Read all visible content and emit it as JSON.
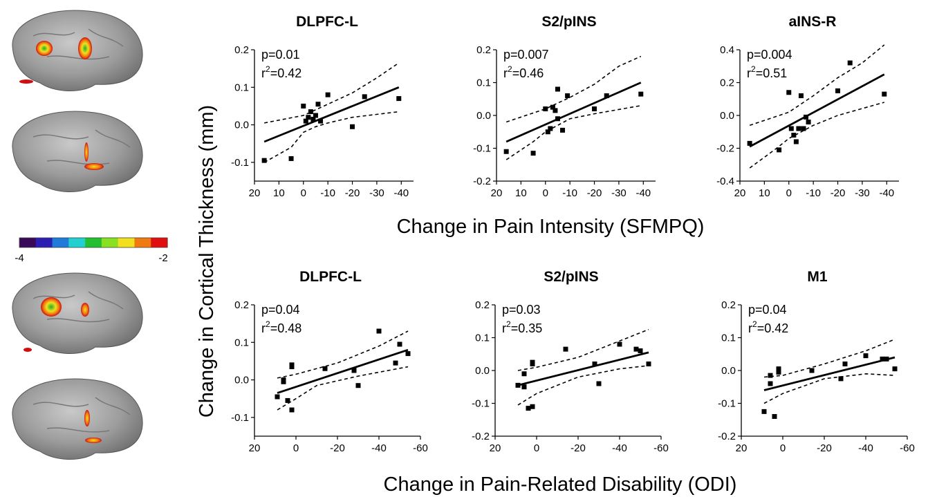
{
  "figure": {
    "ylabel": "Change in Cortical Thickness (mm)",
    "row_labels": [
      "Change in Pain Intensity (SFMPQ)",
      "Change in Pain-Related Disability (ODI)"
    ]
  },
  "colorbar": {
    "min_label": "-4",
    "max_label": "-2",
    "colors": [
      "#3a0a5a",
      "#2a1fb0",
      "#1f7ad8",
      "#22d0d0",
      "#22c030",
      "#88e020",
      "#f0e020",
      "#f07a10",
      "#e01010"
    ]
  },
  "brain_images": [
    {
      "label": "left-hemisphere-pain-intensity"
    },
    {
      "label": "right-hemisphere-pain-intensity"
    },
    {
      "label": "left-hemisphere-disability"
    },
    {
      "label": "right-hemisphere-disability"
    }
  ],
  "chart_data": [
    {
      "type": "scatter",
      "title": "DLPFC-L",
      "p_label": "p=0.01",
      "r2_prefix": "r",
      "r2_sup": "2",
      "r2_value": "=0.42",
      "xlim": [
        20,
        -45
      ],
      "ylim": [
        -0.15,
        0.2
      ],
      "xticks": [
        20,
        10,
        0,
        -10,
        -20,
        -30,
        -40
      ],
      "xticklabels": [
        "20",
        "10",
        "0",
        "-10",
        "-20",
        "-30",
        "-40"
      ],
      "yticks": [
        -0.1,
        0.0,
        0.1,
        0.2
      ],
      "yticklabels": [
        "-0.1",
        "0.0",
        "0.1",
        "0.2"
      ],
      "points": [
        [
          16,
          -0.095
        ],
        [
          5,
          -0.09
        ],
        [
          0,
          0.05
        ],
        [
          -1,
          0.01
        ],
        [
          -2,
          0.02
        ],
        [
          -3,
          0.035
        ],
        [
          -4,
          0.015
        ],
        [
          -5,
          0.025
        ],
        [
          -6,
          0.055
        ],
        [
          -7,
          0.01
        ],
        [
          -10,
          0.08
        ],
        [
          -20,
          -0.005
        ],
        [
          -25,
          0.075
        ],
        [
          -39,
          0.07
        ]
      ],
      "fit": [
        [
          16,
          -0.045
        ],
        [
          -39,
          0.1
        ]
      ],
      "ci_upper": [
        [
          16,
          0.005
        ],
        [
          0,
          0.025
        ],
        [
          -10,
          0.055
        ],
        [
          -20,
          0.085
        ],
        [
          -30,
          0.125
        ],
        [
          -39,
          0.165
        ]
      ],
      "ci_lower": [
        [
          16,
          -0.1
        ],
        [
          5,
          -0.06
        ],
        [
          0,
          -0.02
        ],
        [
          -5,
          -0.005
        ],
        [
          -10,
          0.005
        ],
        [
          -20,
          0.02
        ],
        [
          -39,
          0.035
        ]
      ]
    },
    {
      "type": "scatter",
      "title": "S2/pINS",
      "p_label": "p=0.007",
      "r2_prefix": "r",
      "r2_sup": "2",
      "r2_value": "=0.46",
      "xlim": [
        20,
        -45
      ],
      "ylim": [
        -0.2,
        0.2
      ],
      "xticks": [
        20,
        10,
        0,
        -10,
        -20,
        -30,
        -40
      ],
      "xticklabels": [
        "20",
        "10",
        "0",
        "-10",
        "-20",
        "-30",
        "-40"
      ],
      "yticks": [
        -0.2,
        -0.1,
        0.0,
        0.1,
        0.2
      ],
      "yticklabels": [
        "-0.2",
        "-0.1",
        "0.0",
        "0.1",
        "0.2"
      ],
      "points": [
        [
          16,
          -0.11
        ],
        [
          5,
          -0.115
        ],
        [
          0,
          0.02
        ],
        [
          -1,
          -0.05
        ],
        [
          -2,
          -0.04
        ],
        [
          -3,
          0.025
        ],
        [
          -4,
          0.015
        ],
        [
          -5,
          0.08
        ],
        [
          -5,
          -0.01
        ],
        [
          -7,
          -0.045
        ],
        [
          -9,
          0.06
        ],
        [
          -20,
          0.02
        ],
        [
          -25,
          0.06
        ],
        [
          -39,
          0.065
        ]
      ],
      "fit": [
        [
          16,
          -0.08
        ],
        [
          -39,
          0.1
        ]
      ],
      "ci_upper": [
        [
          16,
          -0.02
        ],
        [
          0,
          0.02
        ],
        [
          -10,
          0.055
        ],
        [
          -20,
          0.095
        ],
        [
          -30,
          0.15
        ],
        [
          -39,
          0.18
        ]
      ],
      "ci_lower": [
        [
          16,
          -0.135
        ],
        [
          5,
          -0.08
        ],
        [
          0,
          -0.05
        ],
        [
          -10,
          -0.01
        ],
        [
          -20,
          0.005
        ],
        [
          -39,
          0.03
        ]
      ]
    },
    {
      "type": "scatter",
      "title": "aINS-R",
      "p_label": "p=0.004",
      "r2_prefix": "r",
      "r2_sup": "2",
      "r2_value": "=0.51",
      "xlim": [
        20,
        -45
      ],
      "ylim": [
        -0.4,
        0.4
      ],
      "xticks": [
        20,
        10,
        0,
        -10,
        -20,
        -30,
        -40
      ],
      "xticklabels": [
        "20",
        "10",
        "0",
        "-10",
        "-20",
        "-30",
        "-40"
      ],
      "yticks": [
        -0.4,
        -0.2,
        0.0,
        0.2,
        0.4
      ],
      "yticklabels": [
        "-0.4",
        "-0.2",
        "0.0",
        "0.2",
        "0.4"
      ],
      "points": [
        [
          16,
          -0.17
        ],
        [
          4,
          -0.21
        ],
        [
          0,
          0.14
        ],
        [
          -1,
          -0.08
        ],
        [
          -2,
          -0.12
        ],
        [
          -3,
          -0.16
        ],
        [
          -4,
          -0.08
        ],
        [
          -5,
          0.12
        ],
        [
          -6,
          -0.08
        ],
        [
          -7,
          -0.01
        ],
        [
          -8,
          -0.04
        ],
        [
          -20,
          0.15
        ],
        [
          -25,
          0.32
        ],
        [
          -39,
          0.13
        ]
      ],
      "fit": [
        [
          16,
          -0.19
        ],
        [
          -39,
          0.25
        ]
      ],
      "ci_upper": [
        [
          16,
          -0.06
        ],
        [
          0,
          0.02
        ],
        [
          -10,
          0.12
        ],
        [
          -20,
          0.23
        ],
        [
          -30,
          0.32
        ],
        [
          -39,
          0.43
        ]
      ],
      "ci_lower": [
        [
          16,
          -0.32
        ],
        [
          5,
          -0.2
        ],
        [
          0,
          -0.14
        ],
        [
          -10,
          -0.06
        ],
        [
          -20,
          0.0
        ],
        [
          -39,
          0.08
        ]
      ]
    },
    {
      "type": "scatter",
      "title": "DLPFC-L",
      "p_label": "p=0.04",
      "r2_prefix": "r",
      "r2_sup": "2",
      "r2_value": "=0.48",
      "xlim": [
        20,
        -60
      ],
      "ylim": [
        -0.15,
        0.2
      ],
      "xticks": [
        20,
        0,
        -20,
        -40,
        -60
      ],
      "xticklabels": [
        "20",
        "0",
        "-20",
        "-40",
        "-60"
      ],
      "yticks": [
        -0.1,
        0.0,
        0.1,
        0.2
      ],
      "yticklabels": [
        "-0.1",
        "0.0",
        "0.1",
        "0.2"
      ],
      "points": [
        [
          9,
          -0.045
        ],
        [
          2,
          0.04
        ],
        [
          2,
          0.035
        ],
        [
          2,
          -0.08
        ],
        [
          4,
          -0.055
        ],
        [
          6,
          0.0
        ],
        [
          6,
          -0.005
        ],
        [
          -14,
          0.03
        ],
        [
          -28,
          0.025
        ],
        [
          -30,
          -0.015
        ],
        [
          -40,
          0.13
        ],
        [
          -48,
          0.045
        ],
        [
          -50,
          0.095
        ],
        [
          -54,
          0.07
        ]
      ],
      "fit": [
        [
          9,
          -0.035
        ],
        [
          -54,
          0.08
        ]
      ],
      "ci_upper": [
        [
          9,
          0.005
        ],
        [
          0,
          0.015
        ],
        [
          -20,
          0.045
        ],
        [
          -40,
          0.09
        ],
        [
          -54,
          0.13
        ]
      ],
      "ci_lower": [
        [
          9,
          -0.08
        ],
        [
          0,
          -0.05
        ],
        [
          -10,
          -0.015
        ],
        [
          -30,
          0.01
        ],
        [
          -54,
          0.035
        ]
      ]
    },
    {
      "type": "scatter",
      "title": "S2/pINS",
      "p_label": "p=0.03",
      "r2_prefix": "r",
      "r2_sup": "2",
      "r2_value": "=0.35",
      "xlim": [
        20,
        -60
      ],
      "ylim": [
        -0.2,
        0.2
      ],
      "xticks": [
        20,
        0,
        -20,
        -40,
        -60
      ],
      "xticklabels": [
        "20",
        "0",
        "-20",
        "-40",
        "-60"
      ],
      "yticks": [
        -0.2,
        -0.1,
        0.0,
        0.1,
        0.2
      ],
      "yticklabels": [
        "-0.2",
        "-0.1",
        "0.0",
        "0.1",
        "0.2"
      ],
      "points": [
        [
          9,
          -0.045
        ],
        [
          2,
          0.025
        ],
        [
          2,
          0.02
        ],
        [
          2,
          -0.11
        ],
        [
          4,
          -0.115
        ],
        [
          6,
          -0.01
        ],
        [
          6,
          -0.05
        ],
        [
          -14,
          0.065
        ],
        [
          -28,
          0.02
        ],
        [
          -30,
          -0.04
        ],
        [
          -40,
          0.08
        ],
        [
          -48,
          0.065
        ],
        [
          -50,
          0.06
        ],
        [
          -54,
          0.02
        ]
      ],
      "fit": [
        [
          9,
          -0.045
        ],
        [
          -54,
          0.055
        ]
      ],
      "ci_upper": [
        [
          9,
          0.0
        ],
        [
          0,
          0.01
        ],
        [
          -20,
          0.04
        ],
        [
          -40,
          0.09
        ],
        [
          -54,
          0.125
        ]
      ],
      "ci_lower": [
        [
          9,
          -0.105
        ],
        [
          0,
          -0.07
        ],
        [
          -20,
          -0.02
        ],
        [
          -40,
          0.005
        ],
        [
          -54,
          0.015
        ]
      ]
    },
    {
      "type": "scatter",
      "title": "M1",
      "p_label": "p=0.04",
      "r2_prefix": "r",
      "r2_sup": "2",
      "r2_value": "=0.42",
      "xlim": [
        20,
        -60
      ],
      "ylim": [
        -0.2,
        0.2
      ],
      "xticks": [
        20,
        0,
        -20,
        -40,
        -60
      ],
      "xticklabels": [
        "20",
        "0",
        "-20",
        "-40",
        "-60"
      ],
      "yticks": [
        -0.2,
        -0.1,
        0.0,
        0.1,
        0.2
      ],
      "yticklabels": [
        "-0.2",
        "-0.1",
        "0.0",
        "0.1",
        "0.2"
      ],
      "points": [
        [
          9,
          -0.125
        ],
        [
          2,
          0.005
        ],
        [
          2,
          -0.005
        ],
        [
          2,
          0.0
        ],
        [
          4,
          -0.14
        ],
        [
          6,
          -0.015
        ],
        [
          6,
          -0.04
        ],
        [
          -14,
          0.0
        ],
        [
          -28,
          -0.025
        ],
        [
          -30,
          0.02
        ],
        [
          -40,
          0.045
        ],
        [
          -48,
          0.035
        ],
        [
          -50,
          0.035
        ],
        [
          -54,
          0.005
        ]
      ],
      "fit": [
        [
          9,
          -0.06
        ],
        [
          -54,
          0.04
        ]
      ],
      "ci_upper": [
        [
          9,
          -0.02
        ],
        [
          0,
          -0.015
        ],
        [
          -20,
          0.02
        ],
        [
          -40,
          0.06
        ],
        [
          -54,
          0.095
        ]
      ],
      "ci_lower": [
        [
          9,
          -0.1
        ],
        [
          0,
          -0.07
        ],
        [
          -20,
          -0.025
        ],
        [
          -40,
          -0.01
        ],
        [
          -54,
          -0.015
        ]
      ]
    }
  ]
}
